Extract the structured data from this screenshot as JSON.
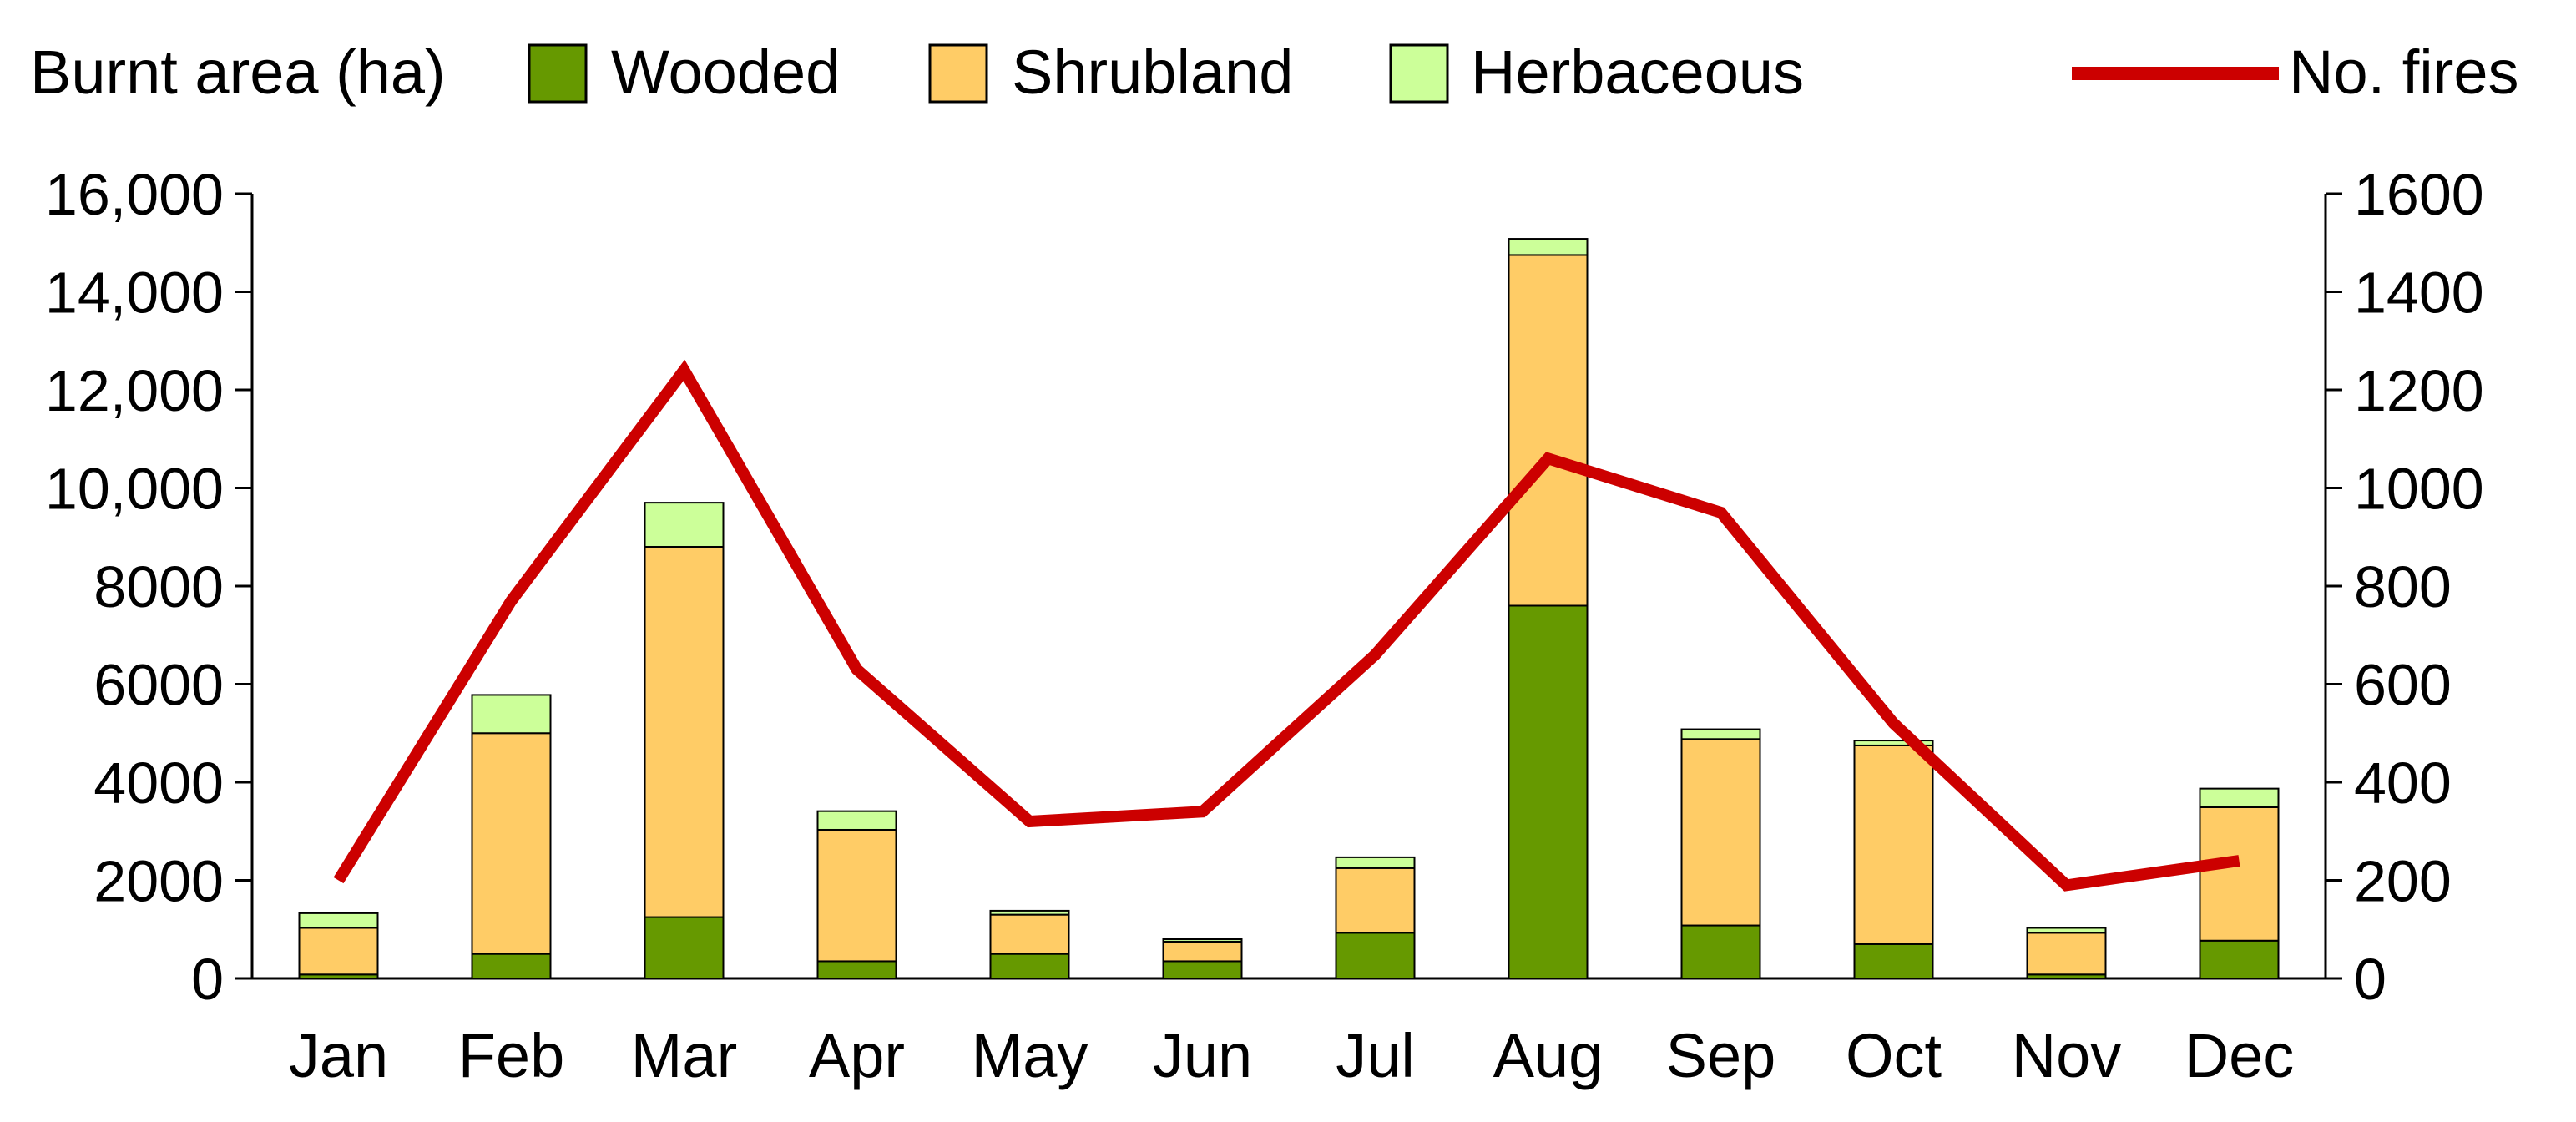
{
  "chart_data": {
    "type": "bar",
    "stacked": true,
    "categories": [
      "Jan",
      "Feb",
      "Mar",
      "Apr",
      "May",
      "Jun",
      "Jul",
      "Aug",
      "Sep",
      "Oct",
      "Nov",
      "Dec"
    ],
    "legend": {
      "title": "Burnt area (ha)",
      "placement": "top"
    },
    "series": [
      {
        "name": "Wooded",
        "color": "#669900",
        "axis": "left",
        "values": [
          80,
          500,
          1250,
          350,
          500,
          350,
          930,
          7600,
          1080,
          700,
          80,
          770
        ]
      },
      {
        "name": "Shrubland",
        "color": "#FFCC66",
        "axis": "left",
        "values": [
          950,
          4500,
          7550,
          2680,
          800,
          400,
          1320,
          7150,
          3800,
          4050,
          850,
          2720
        ]
      },
      {
        "name": "Herbaceous",
        "color": "#CCFF99",
        "axis": "left",
        "values": [
          300,
          780,
          900,
          380,
          80,
          50,
          220,
          330,
          200,
          100,
          100,
          380
        ]
      }
    ],
    "line_series": {
      "name": "No. fires",
      "color": "#CC0000",
      "axis": "right",
      "values": [
        200,
        770,
        1240,
        630,
        320,
        340,
        660,
        1060,
        950,
        520,
        190,
        240
      ]
    },
    "y_left": {
      "ylim": [
        0,
        16000
      ],
      "ticks": [
        0,
        2000,
        4000,
        6000,
        8000,
        10000,
        12000,
        14000,
        16000
      ],
      "tick_labels": [
        "0",
        "2000",
        "4000",
        "6000",
        "8000",
        "10,000",
        "12,000",
        "14,000",
        "16,000"
      ]
    },
    "y_right": {
      "ylim": [
        0,
        1600
      ],
      "ticks": [
        0,
        200,
        400,
        600,
        800,
        1000,
        1200,
        1400,
        1600
      ],
      "tick_labels": [
        "0",
        "200",
        "400",
        "600",
        "800",
        "1000",
        "1200",
        "1400",
        "1600"
      ]
    },
    "grid": false
  }
}
